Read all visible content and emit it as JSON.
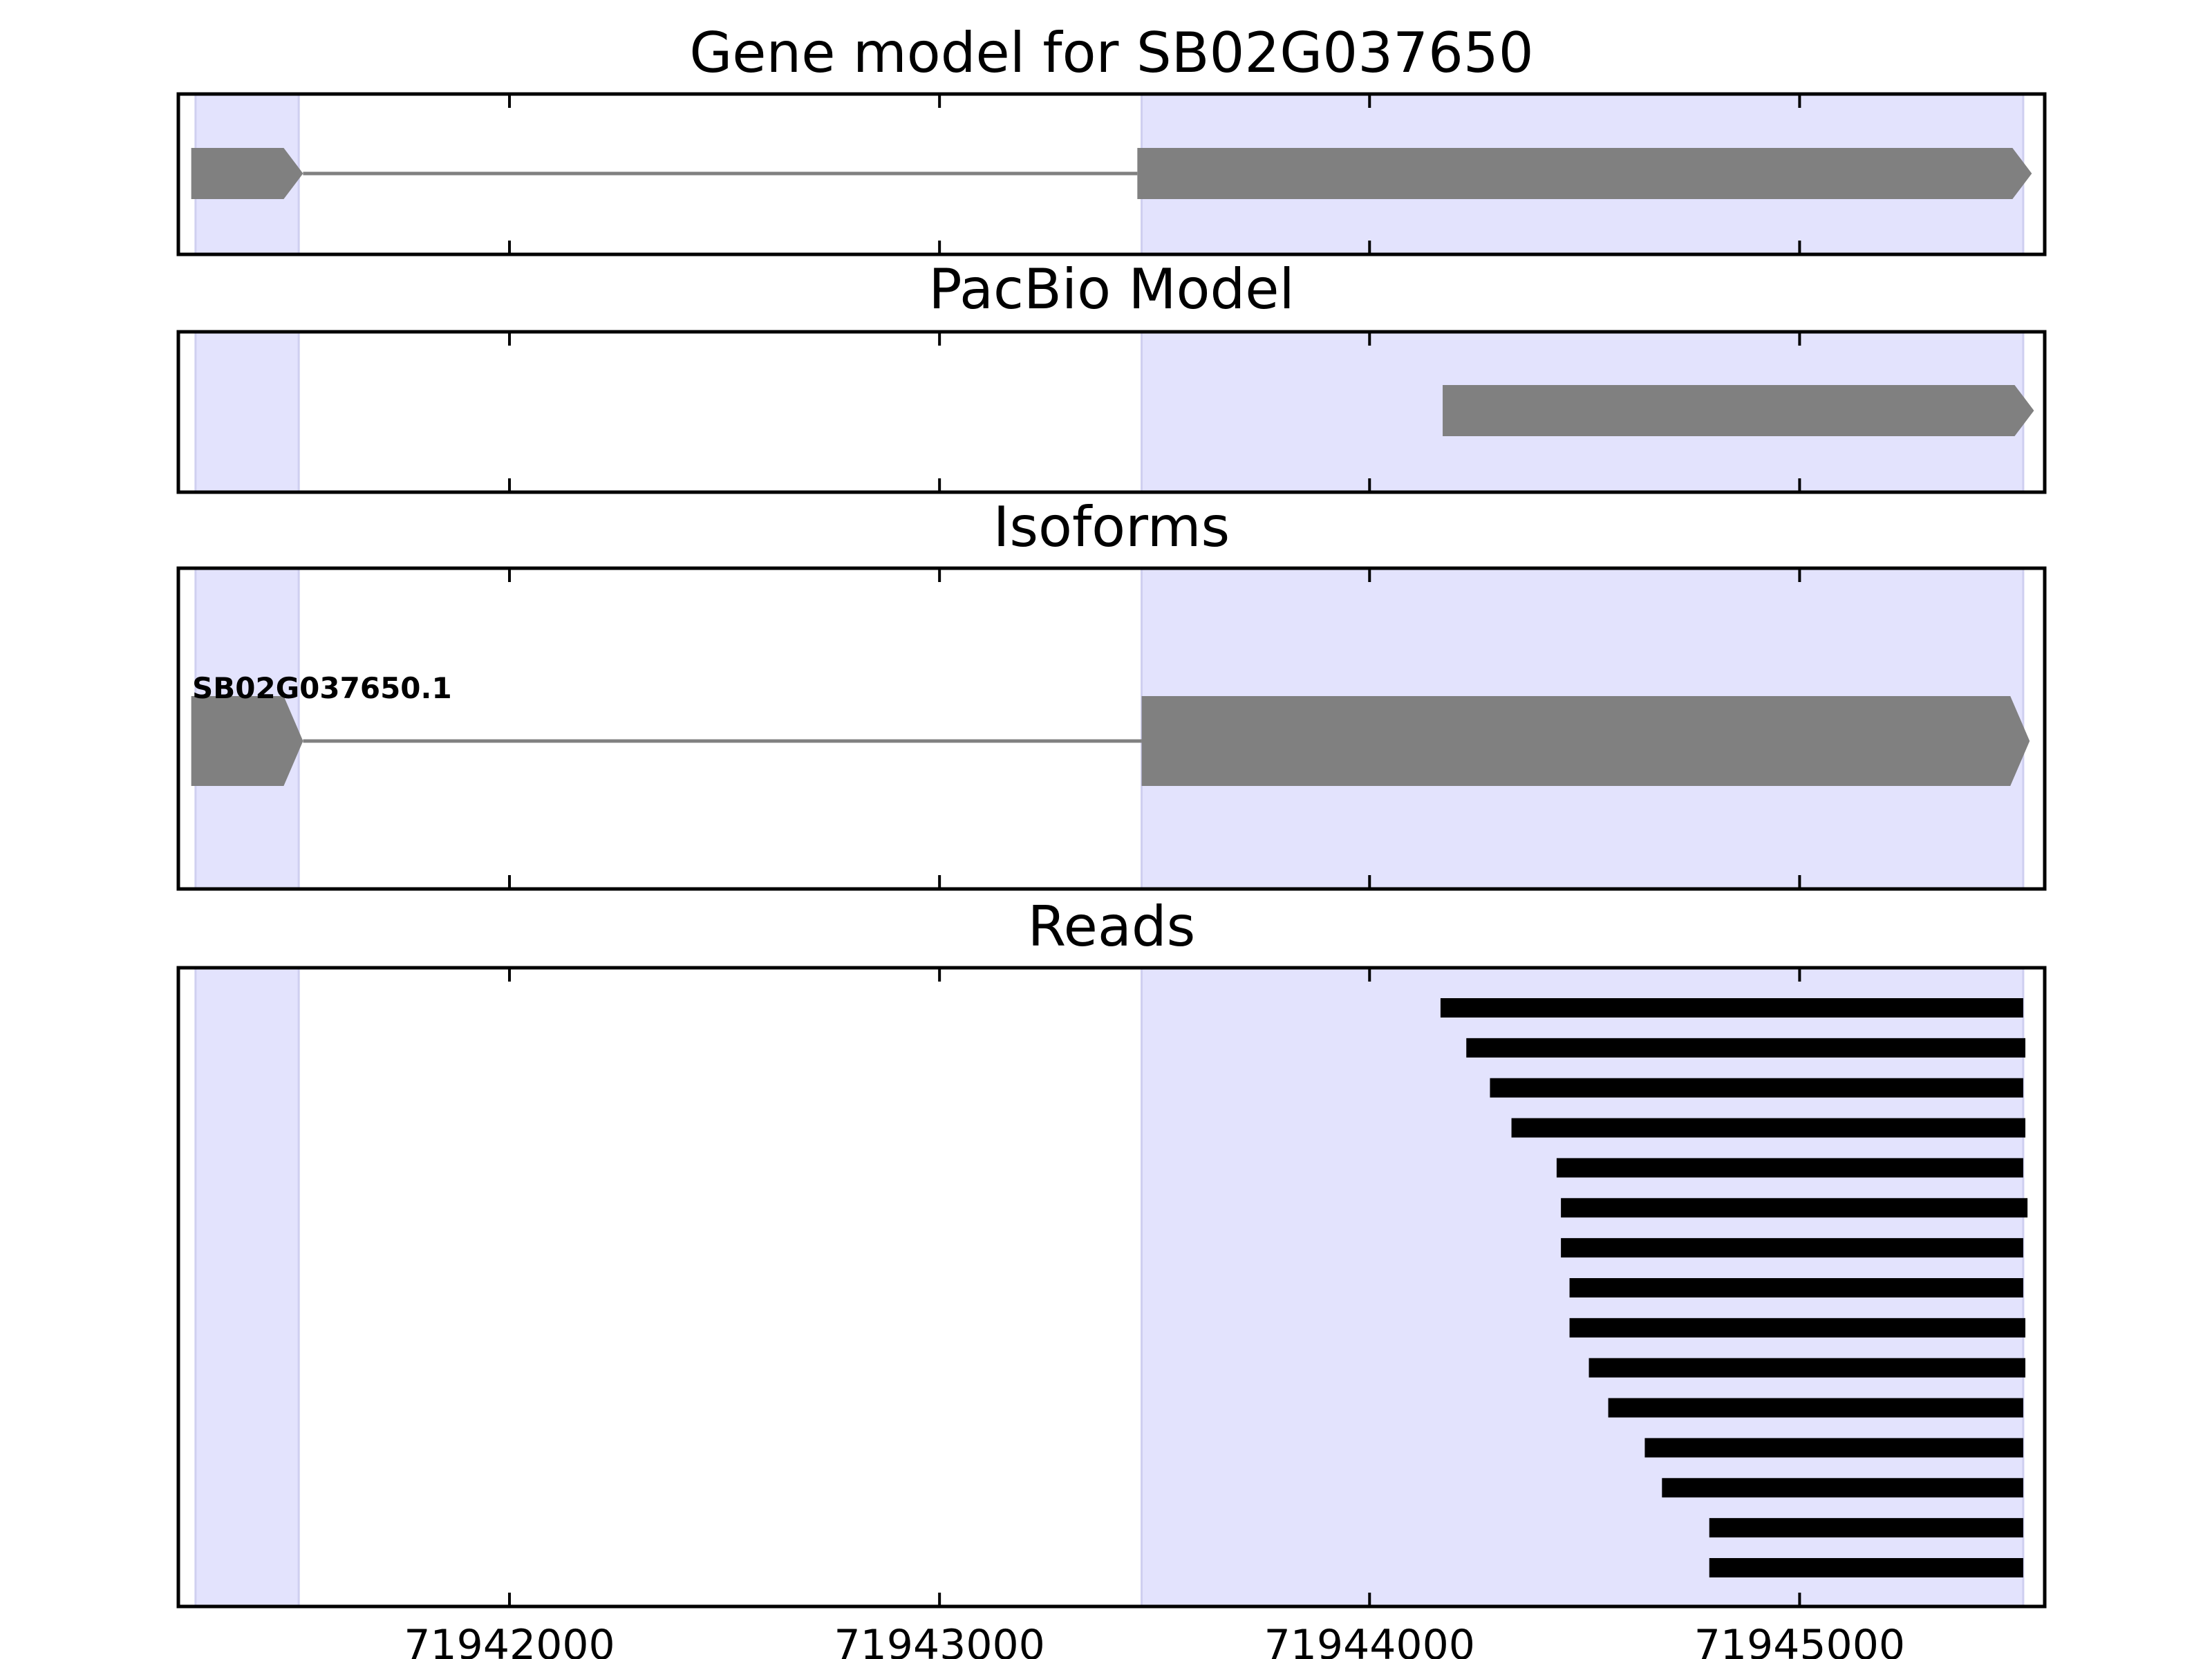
{
  "chart_data": {
    "type": "gene-model-tracks",
    "xlim": [
      71941230,
      71945570
    ],
    "xticks": [
      71942000,
      71943000,
      71944000,
      71945000
    ],
    "tick_labels": [
      "71942000",
      "71943000",
      "71944000",
      "71945000"
    ],
    "highlight_regions": [
      [
        71941270,
        71941510
      ],
      [
        71943470,
        71945520
      ]
    ],
    "colors": {
      "highlight": "#e3e3fd",
      "highlight_edge": "#cfcff0",
      "feature": "#808080",
      "read": "#000000",
      "axis": "#000000"
    },
    "panels": [
      {
        "title": "Gene model for SB02G037650",
        "features": [
          {
            "kind": "exon",
            "start": 71941260,
            "end": 71941520,
            "strand": "+"
          },
          {
            "kind": "intron",
            "start": 71941520,
            "end": 71943460
          },
          {
            "kind": "exon",
            "start": 71943460,
            "end": 71945540,
            "strand": "+"
          }
        ]
      },
      {
        "title": "PacBio Model",
        "features": [
          {
            "kind": "exon",
            "start": 71944170,
            "end": 71945545,
            "strand": "+"
          }
        ]
      },
      {
        "title": "Isoforms",
        "isoform_label": "SB02G037650.1",
        "features": [
          {
            "kind": "exon",
            "start": 71941260,
            "end": 71941520,
            "strand": "+"
          },
          {
            "kind": "intron",
            "start": 71941520,
            "end": 71943470
          },
          {
            "kind": "exon",
            "start": 71943470,
            "end": 71945535,
            "strand": "+"
          }
        ]
      },
      {
        "title": "Reads",
        "reads": [
          [
            71944165,
            71945520
          ],
          [
            71944225,
            71945525
          ],
          [
            71944280,
            71945520
          ],
          [
            71944330,
            71945525
          ],
          [
            71944435,
            71945520
          ],
          [
            71944445,
            71945530
          ],
          [
            71944445,
            71945520
          ],
          [
            71944465,
            71945520
          ],
          [
            71944465,
            71945525
          ],
          [
            71944510,
            71945525
          ],
          [
            71944555,
            71945520
          ],
          [
            71944640,
            71945520
          ],
          [
            71944680,
            71945520
          ],
          [
            71944790,
            71945520
          ],
          [
            71944790,
            71945520
          ]
        ]
      }
    ]
  }
}
